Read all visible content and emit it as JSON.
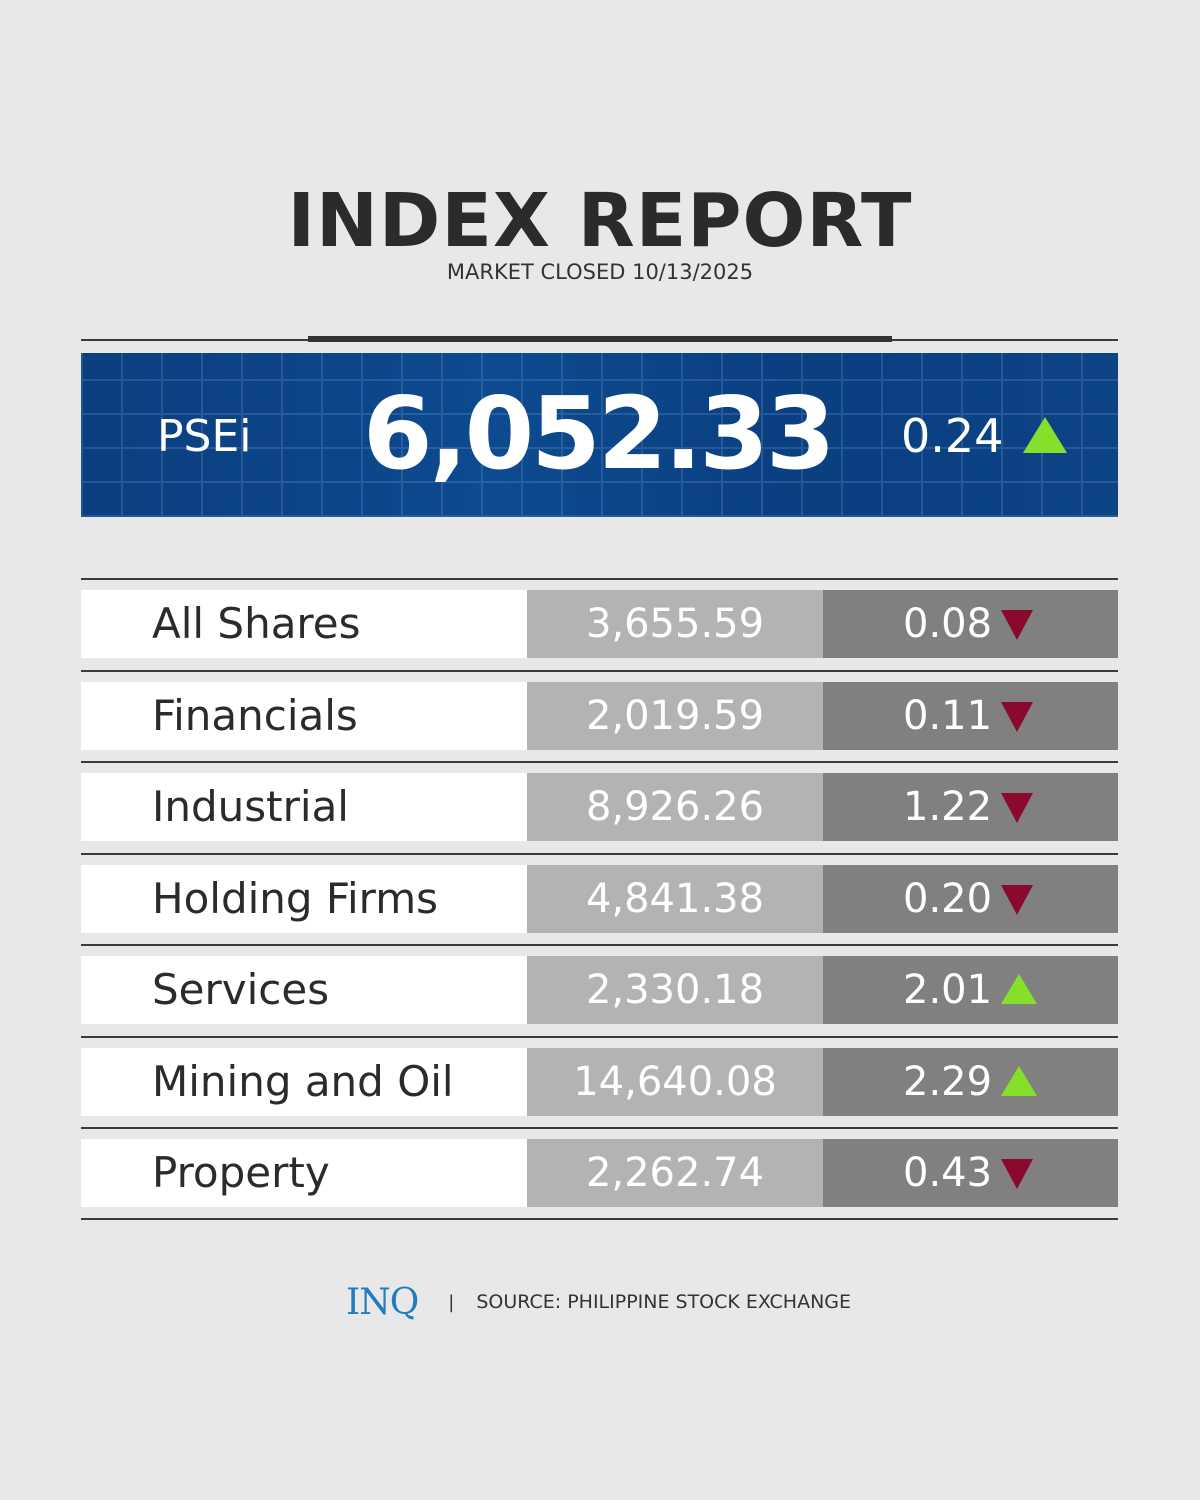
{
  "header": {
    "title": "INDEX REPORT",
    "subtitle": "MARKET CLOSED 10/13/2025"
  },
  "main_index": {
    "name": "PSEi",
    "value": "6,052.33",
    "change": "0.24",
    "direction": "up"
  },
  "colors": {
    "banner": "#0a3f80",
    "up": "#86e02b",
    "down": "#8a0a2e",
    "value_cell": "#b3b3b3",
    "change_cell": "#808080"
  },
  "indices": [
    {
      "name": "All Shares",
      "value": "3,655.59",
      "change": "0.08",
      "direction": "down"
    },
    {
      "name": "Financials",
      "value": "2,019.59",
      "change": "0.11",
      "direction": "down"
    },
    {
      "name": "Industrial",
      "value": "8,926.26",
      "change": "1.22",
      "direction": "down"
    },
    {
      "name": "Holding Firms",
      "value": "4,841.38",
      "change": "0.20",
      "direction": "down"
    },
    {
      "name": "Services",
      "value": "2,330.18",
      "change": "2.01",
      "direction": "up"
    },
    {
      "name": "Mining and Oil",
      "value": "14,640.08",
      "change": "2.29",
      "direction": "up"
    },
    {
      "name": "Property",
      "value": "2,262.74",
      "change": "0.43",
      "direction": "down"
    }
  ],
  "footer": {
    "logo": "INQ",
    "separator": "|",
    "source": "SOURCE: PHILIPPINE STOCK EXCHANGE"
  }
}
